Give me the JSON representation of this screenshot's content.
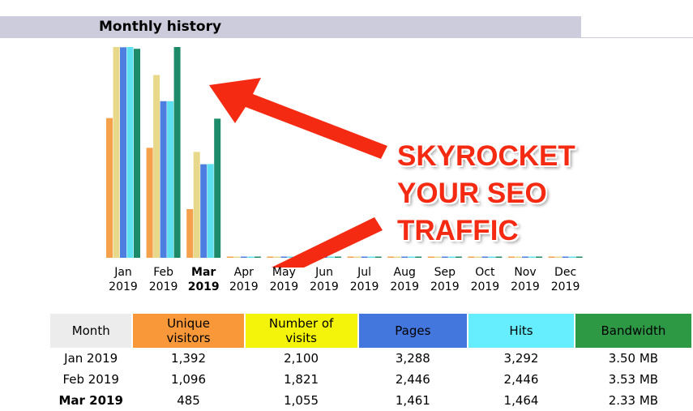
{
  "header": {
    "title": "Monthly history"
  },
  "annotation": {
    "lines": [
      "SKYROCKET",
      "YOUR SEO",
      "TRAFFIC"
    ],
    "color": "#f52a12"
  },
  "chart_data": {
    "type": "bar",
    "categories": [
      "Jan 2019",
      "Feb 2019",
      "Mar 2019",
      "Apr 2019",
      "May 2019",
      "Jun 2019",
      "Jul 2019",
      "Aug 2019",
      "Sep 2019",
      "Oct 2019",
      "Nov 2019",
      "Dec 2019"
    ],
    "current": "Mar 2019",
    "series": [
      {
        "name": "Unique visitors",
        "color": "#f5a04a",
        "values": [
          1392,
          1096,
          485,
          0,
          0,
          0,
          0,
          0,
          0,
          0,
          0,
          0
        ]
      },
      {
        "name": "Number of visits",
        "color": "#e8d98a",
        "values": [
          2100,
          1821,
          1055,
          0,
          0,
          0,
          0,
          0,
          0,
          0,
          0,
          0
        ]
      },
      {
        "name": "Pages",
        "color": "#4c7fe0",
        "values": [
          3288,
          2446,
          1461,
          0,
          0,
          0,
          0,
          0,
          0,
          0,
          0,
          0
        ]
      },
      {
        "name": "Hits",
        "color": "#5fe0f0",
        "values": [
          3292,
          2446,
          1464,
          0,
          0,
          0,
          0,
          0,
          0,
          0,
          0,
          0
        ]
      },
      {
        "name": "Bandwidth",
        "color": "#1d8a6a",
        "values": [
          3.5,
          3.53,
          2.33,
          0,
          0,
          0,
          0,
          0,
          0,
          0,
          0,
          0
        ]
      }
    ]
  },
  "months": [
    [
      "Jan",
      "2019"
    ],
    [
      "Feb",
      "2019"
    ],
    [
      "Mar",
      "2019"
    ],
    [
      "Apr",
      "2019"
    ],
    [
      "May",
      "2019"
    ],
    [
      "Jun",
      "2019"
    ],
    [
      "Jul",
      "2019"
    ],
    [
      "Aug",
      "2019"
    ],
    [
      "Sep",
      "2019"
    ],
    [
      "Oct",
      "2019"
    ],
    [
      "Nov",
      "2019"
    ],
    [
      "Dec",
      "2019"
    ]
  ],
  "table": {
    "headers": [
      "Month",
      "Unique visitors",
      "Number of visits",
      "Pages",
      "Hits",
      "Bandwidth"
    ],
    "header_colors": [
      "#ececec",
      "#f89838",
      "#f4f40a",
      "#4477dd",
      "#66eeff",
      "#2e9944"
    ],
    "rows": [
      [
        "Jan 2019",
        "1,392",
        "2,100",
        "3,288",
        "3,292",
        "3.50 MB"
      ],
      [
        "Feb 2019",
        "1,096",
        "1,821",
        "2,446",
        "2,446",
        "3.53 MB"
      ],
      [
        "Mar 2019",
        "485",
        "1,055",
        "1,461",
        "1,464",
        "2.33 MB"
      ]
    ]
  }
}
